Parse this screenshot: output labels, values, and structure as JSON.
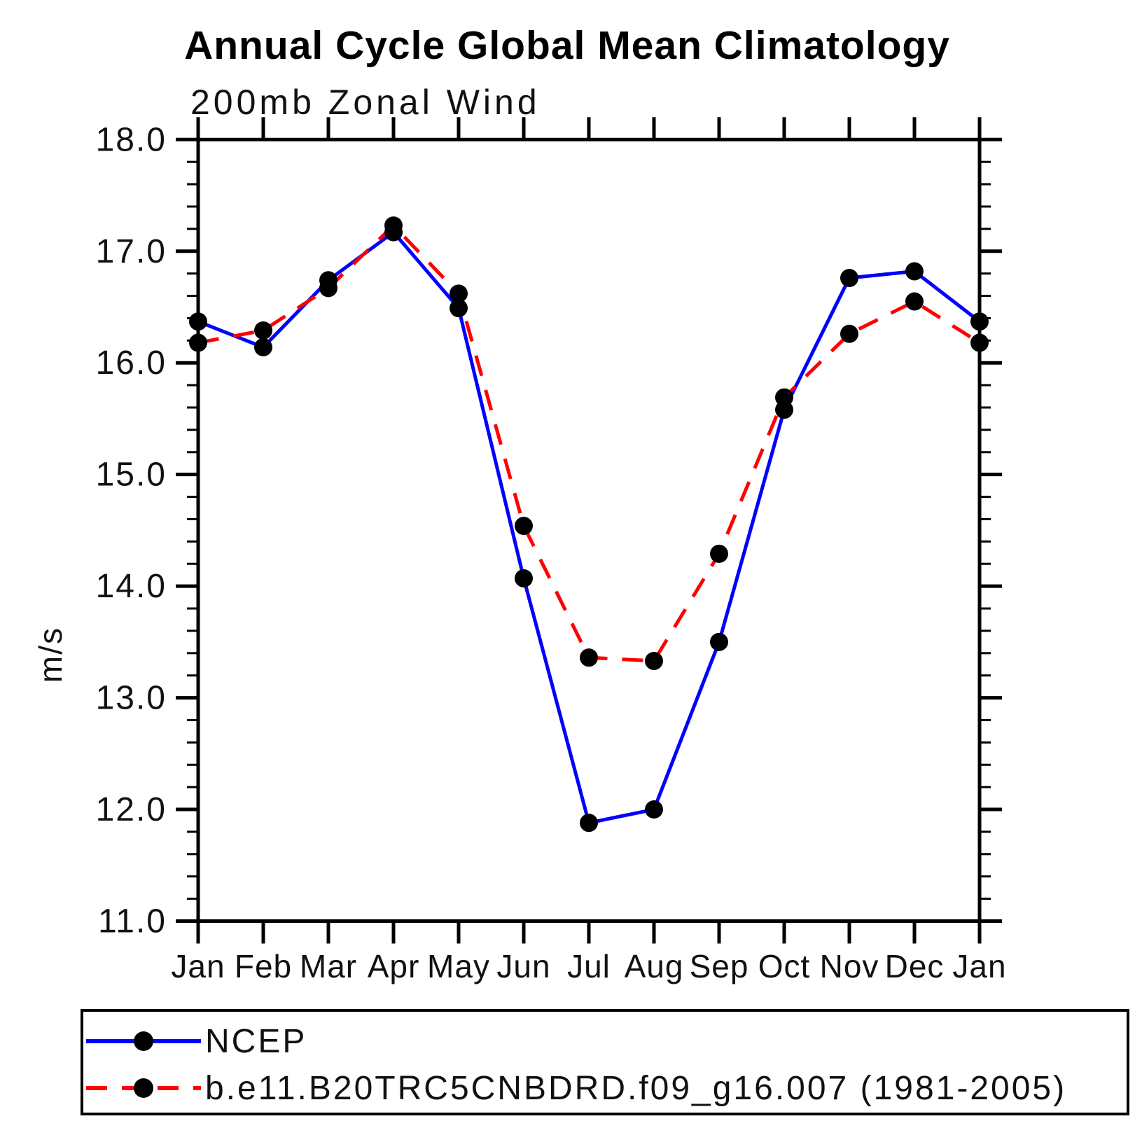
{
  "chart_data": {
    "type": "line",
    "title": "Annual Cycle Global Mean Climatology",
    "subtitle": "200mb Zonal Wind",
    "ylabel": "m/s",
    "x_categories": [
      "Jan",
      "Feb",
      "Mar",
      "Apr",
      "May",
      "Jun",
      "Jul",
      "Aug",
      "Sep",
      "Oct",
      "Nov",
      "Dec",
      "Jan"
    ],
    "ylim": [
      11.0,
      18.0
    ],
    "y_major_tick_step": 1.0,
    "y_minor_tick_step": 0.2,
    "y_tick_labels": [
      "11.0",
      "12.0",
      "13.0",
      "14.0",
      "15.0",
      "16.0",
      "17.0",
      "18.0"
    ],
    "grid": "off",
    "legend_position": "bottom",
    "series": [
      {
        "name": "NCEP",
        "line_style": "solid",
        "color": "#0000ff",
        "marker_color": "#000000",
        "values": [
          16.37,
          16.14,
          16.74,
          17.17,
          16.49,
          14.07,
          11.88,
          12.0,
          13.5,
          15.58,
          16.76,
          16.82,
          16.37
        ]
      },
      {
        "name": "b.e11.B20TRC5CNBDRD.f09_g16.007 (1981-2005)",
        "line_style": "dashed",
        "color": "#ff0000",
        "marker_color": "#000000",
        "values": [
          16.18,
          16.29,
          16.67,
          17.23,
          16.62,
          14.54,
          13.36,
          13.33,
          14.29,
          15.69,
          16.26,
          16.55,
          16.18
        ]
      }
    ]
  },
  "colors": {
    "background": "#ffffff",
    "axis": "#000000",
    "ncep_line": "#0000ff",
    "model_line": "#ff0000",
    "marker": "#000000"
  }
}
